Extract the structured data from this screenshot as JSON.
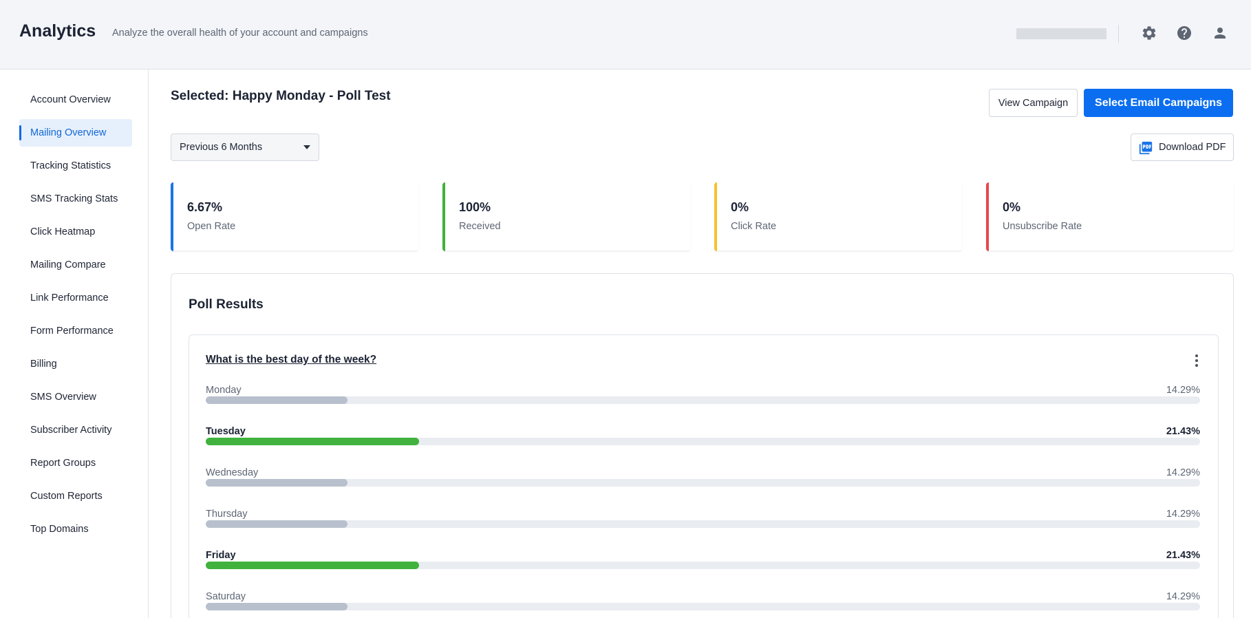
{
  "header": {
    "title": "Analytics",
    "subtitle": "Analyze the overall health of your account and campaigns",
    "icons": [
      "gear-icon",
      "help-icon",
      "user-icon"
    ]
  },
  "sidebar": {
    "items": [
      {
        "label": "Account Overview",
        "active": false
      },
      {
        "label": "Mailing Overview",
        "active": true
      },
      {
        "label": "Tracking Statistics",
        "active": false
      },
      {
        "label": "SMS Tracking Stats",
        "active": false
      },
      {
        "label": "Click Heatmap",
        "active": false
      },
      {
        "label": "Mailing Compare",
        "active": false
      },
      {
        "label": "Link Performance",
        "active": false
      },
      {
        "label": "Form Performance",
        "active": false
      },
      {
        "label": "Billing",
        "active": false
      },
      {
        "label": "SMS Overview",
        "active": false
      },
      {
        "label": "Subscriber Activity",
        "active": false
      },
      {
        "label": "Report Groups",
        "active": false
      },
      {
        "label": "Custom Reports",
        "active": false
      },
      {
        "label": "Top Domains",
        "active": false
      }
    ]
  },
  "main": {
    "selected_title": "Selected: Happy Monday - Poll Test",
    "view_campaign_label": "View Campaign",
    "select_campaigns_label": "Select Email Campaigns",
    "period_value": "Previous 6 Months",
    "download_pdf_label": "Download PDF"
  },
  "stats": [
    {
      "value": "6.67%",
      "label": "Open Rate",
      "color": "#1a73e8"
    },
    {
      "value": "100%",
      "label": "Received",
      "color": "#3fb23c"
    },
    {
      "value": "0%",
      "label": "Click Rate",
      "color": "#f6c22b"
    },
    {
      "value": "0%",
      "label": "Unsubscribe Rate",
      "color": "#e5484d"
    }
  ],
  "poll": {
    "heading": "Poll Results",
    "question": "What is the best day of the week?",
    "options": [
      {
        "label": "Monday",
        "percent_text": "14.29%",
        "percent": 14.29,
        "highlight": false
      },
      {
        "label": "Tuesday",
        "percent_text": "21.43%",
        "percent": 21.43,
        "highlight": true
      },
      {
        "label": "Wednesday",
        "percent_text": "14.29%",
        "percent": 14.29,
        "highlight": false
      },
      {
        "label": "Thursday",
        "percent_text": "14.29%",
        "percent": 14.29,
        "highlight": false
      },
      {
        "label": "Friday",
        "percent_text": "21.43%",
        "percent": 21.43,
        "highlight": true
      },
      {
        "label": "Saturday",
        "percent_text": "14.29%",
        "percent": 14.29,
        "highlight": false
      }
    ]
  },
  "colors": {
    "accent": "#0b6ef0",
    "winner_bar": "#40b23d",
    "default_bar": "#b8c0cd"
  }
}
